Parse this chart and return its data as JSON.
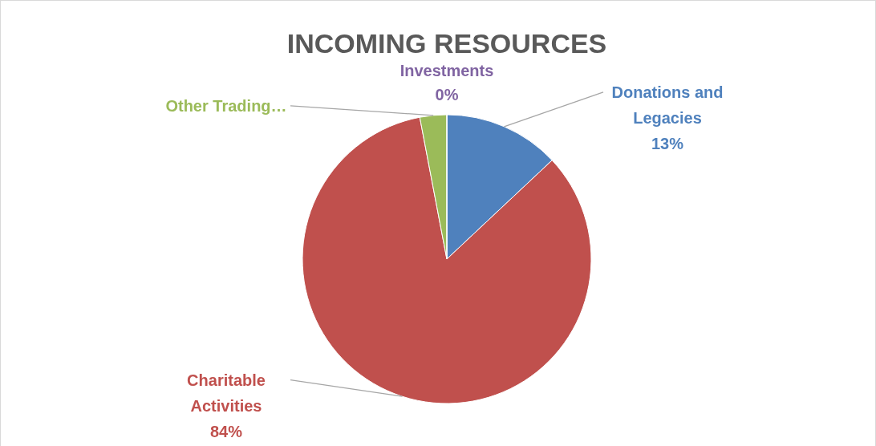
{
  "chart_data": {
    "type": "pie",
    "title": "INCOMING RESOURCES",
    "categories": [
      "Donations and Legacies",
      "Charitable Activities",
      "Other Trading…",
      "Investments"
    ],
    "values": [
      13,
      84,
      3,
      0
    ],
    "colors": [
      "#4f81bd",
      "#c0504d",
      "#9bbb59",
      "#8064a2"
    ],
    "value_labels": [
      "13%",
      "84%",
      null,
      "0%"
    ]
  }
}
